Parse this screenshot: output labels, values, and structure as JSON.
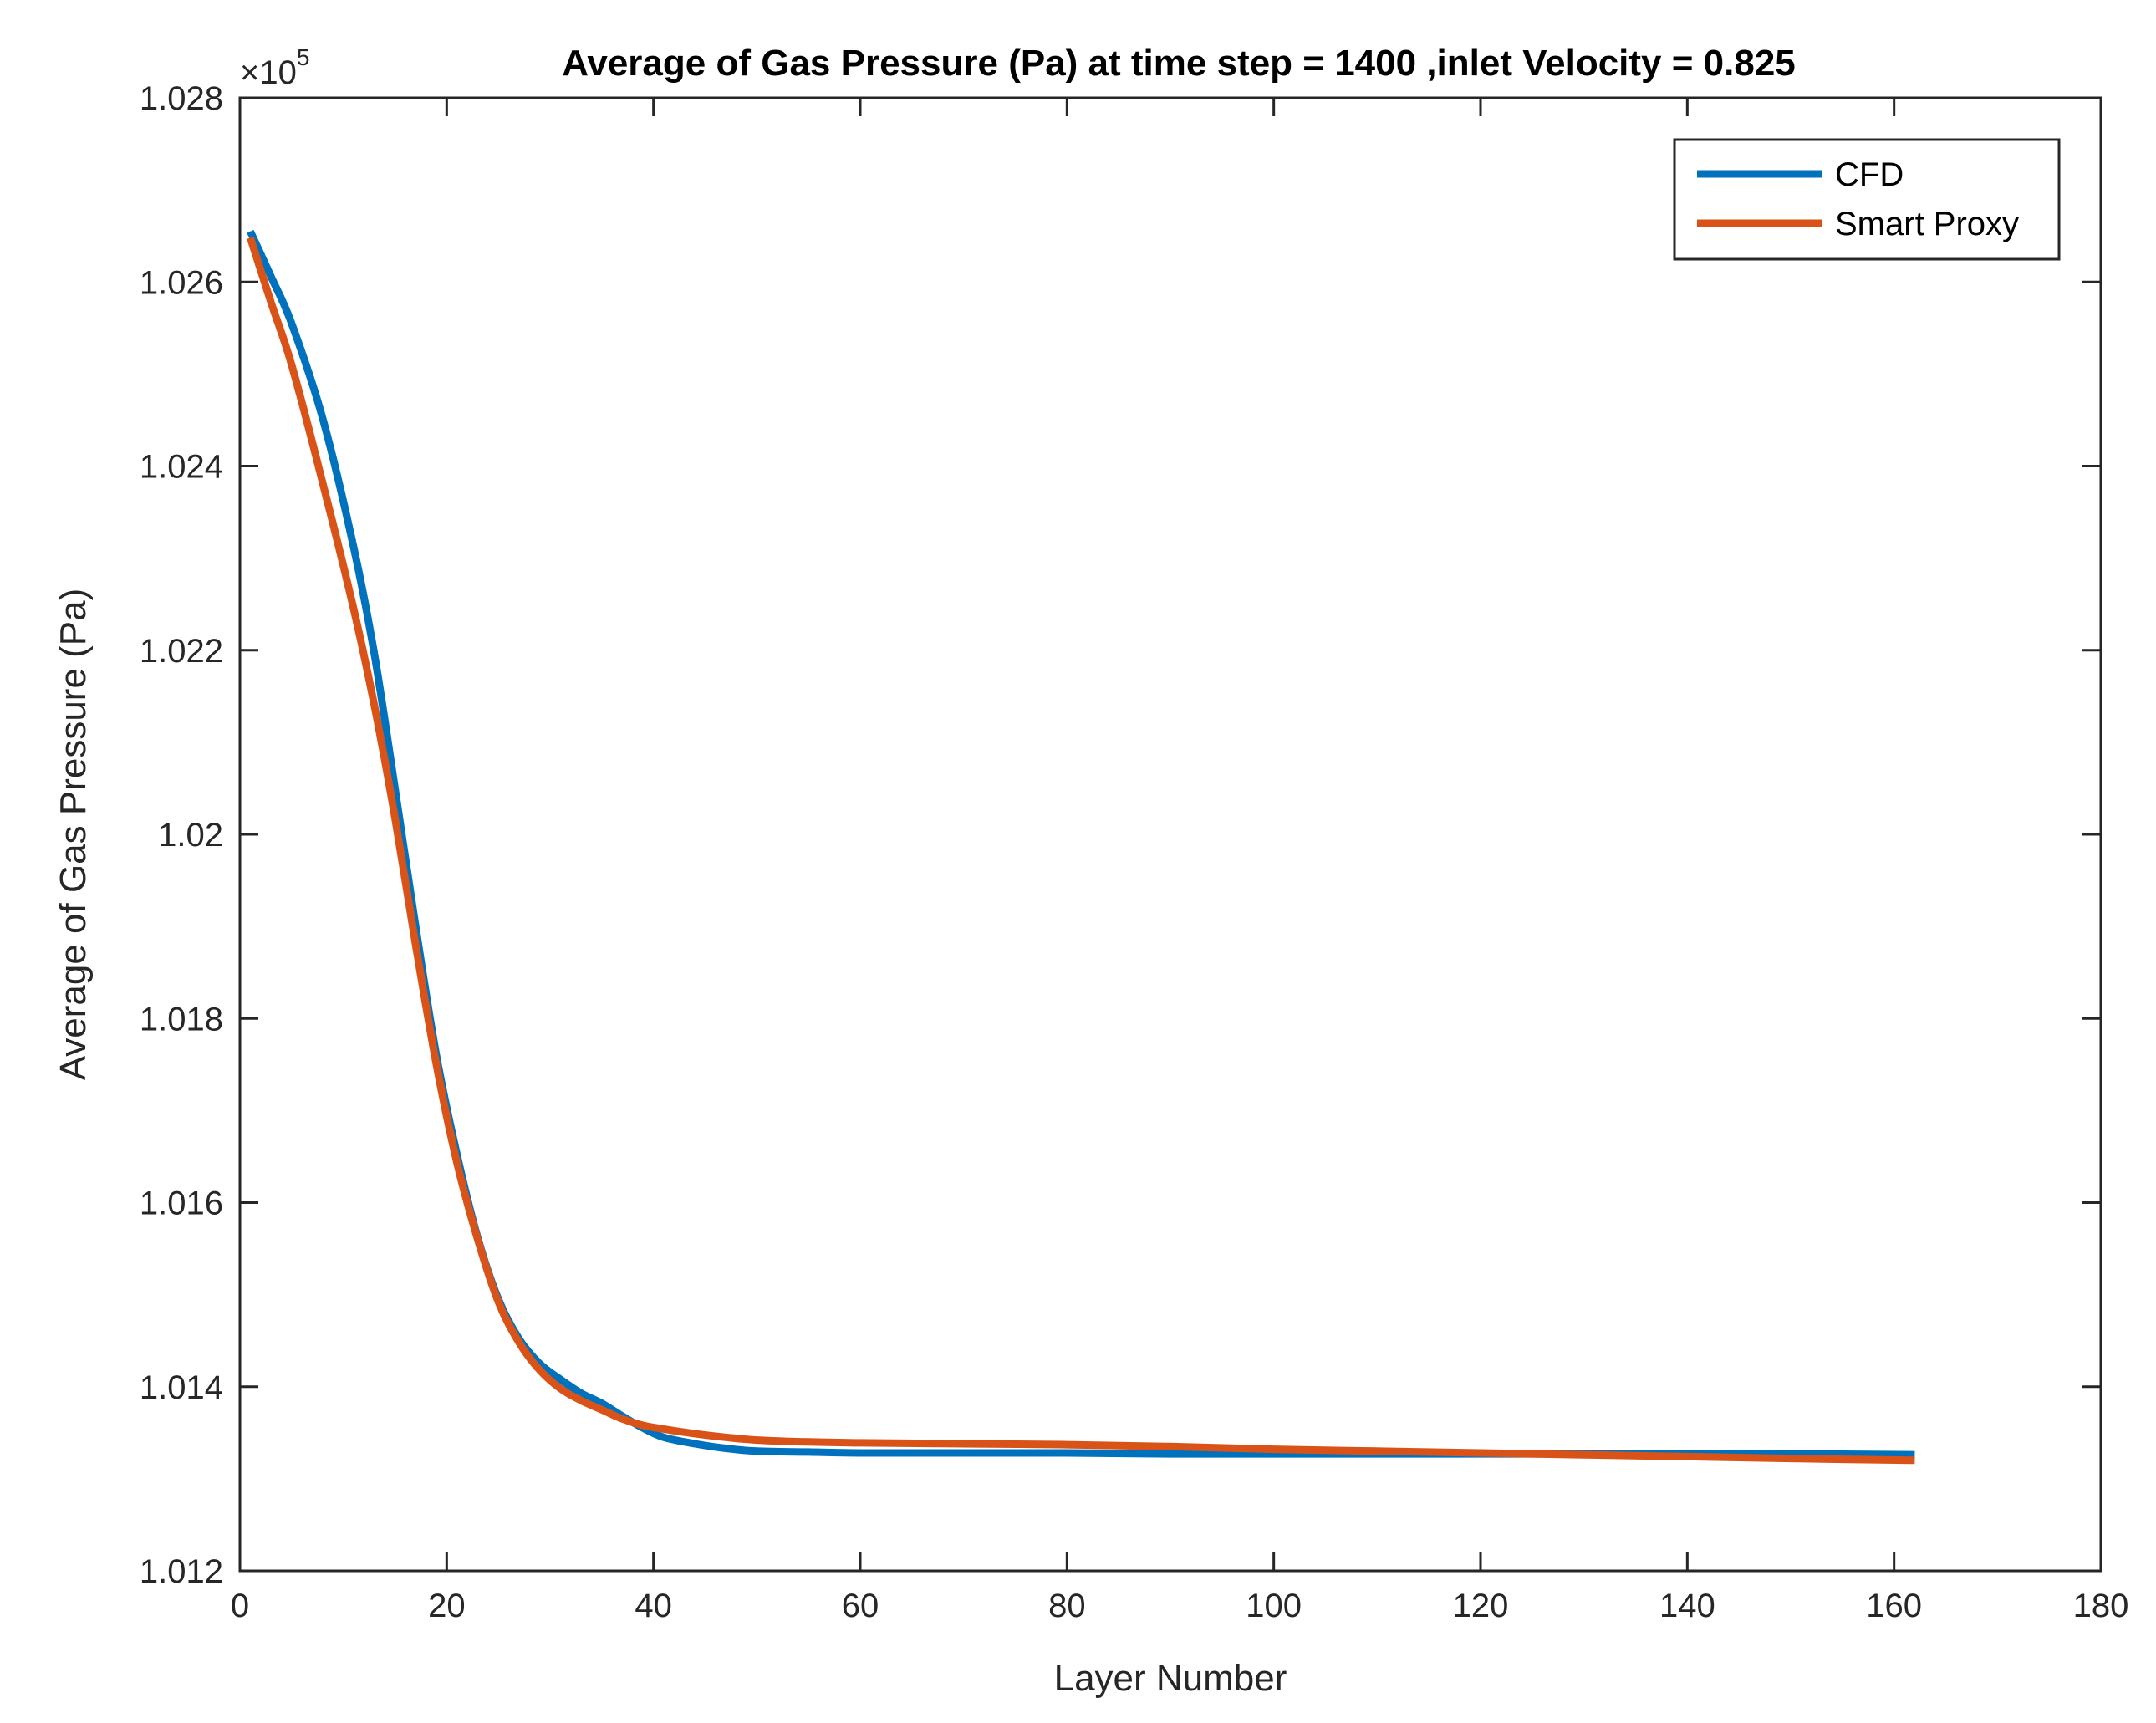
{
  "chart_data": {
    "type": "line",
    "title": "Average of Gas Pressure (Pa) at time step = 1400 ,inlet Velocity = 0.825",
    "xlabel": "Layer Number",
    "ylabel": "Average of Gas Pressure (Pa)",
    "xlim": [
      0,
      180
    ],
    "ylim": [
      1.012,
      1.028
    ],
    "y_scale_label": {
      "times": "×10",
      "exponent": "5"
    },
    "xticks": [
      0,
      20,
      40,
      60,
      80,
      100,
      120,
      140,
      160,
      180
    ],
    "xtick_labels": [
      "0",
      "20",
      "40",
      "60",
      "80",
      "100",
      "120",
      "140",
      "160",
      "180"
    ],
    "yticks": [
      1.012,
      1.014,
      1.016,
      1.018,
      1.02,
      1.022,
      1.024,
      1.026,
      1.028
    ],
    "ytick_labels": [
      "1.012",
      "1.014",
      "1.016",
      "1.018",
      "1.02",
      "1.022",
      "1.024",
      "1.026",
      "1.028"
    ],
    "grid": false,
    "legend": {
      "location": "top-right"
    },
    "series": [
      {
        "name": "CFD",
        "color": "#0072BD",
        "x": [
          1,
          3,
          5,
          8,
          11,
          13,
          15,
          17,
          19,
          21,
          23,
          25,
          27,
          29,
          31,
          33,
          35,
          37,
          39,
          41,
          44,
          47,
          50,
          55,
          60,
          70,
          80,
          90,
          100,
          110,
          120,
          130,
          140,
          150,
          162
        ],
        "y": [
          1.02655,
          1.02606,
          1.02555,
          1.02452,
          1.02312,
          1.02196,
          1.0205,
          1.019,
          1.0176,
          1.01652,
          1.01562,
          1.01495,
          1.01452,
          1.01425,
          1.01408,
          1.01393,
          1.01382,
          1.01368,
          1.01355,
          1.01345,
          1.01338,
          1.01333,
          1.0133,
          1.01329,
          1.01328,
          1.01328,
          1.01328,
          1.01327,
          1.01327,
          1.01327,
          1.01327,
          1.01327,
          1.01327,
          1.01327,
          1.01326
        ]
      },
      {
        "name": "Smart Proxy",
        "color": "#D95319",
        "x": [
          1,
          3,
          5,
          8,
          11,
          13,
          15,
          17,
          19,
          21,
          23,
          25,
          27,
          29,
          31,
          33,
          35,
          37,
          39,
          41,
          44,
          47,
          50,
          55,
          60,
          70,
          80,
          90,
          100,
          110,
          120,
          130,
          140,
          150,
          162
        ],
        "y": [
          1.02648,
          1.02578,
          1.0251,
          1.02382,
          1.02245,
          1.0214,
          1.02018,
          1.0188,
          1.0175,
          1.01643,
          1.0156,
          1.01492,
          1.01448,
          1.01418,
          1.01398,
          1.01385,
          1.01375,
          1.01365,
          1.01358,
          1.01354,
          1.01349,
          1.01345,
          1.01342,
          1.0134,
          1.01339,
          1.01338,
          1.01337,
          1.01335,
          1.01332,
          1.0133,
          1.01328,
          1.01326,
          1.01324,
          1.01322,
          1.0132
        ]
      }
    ]
  }
}
